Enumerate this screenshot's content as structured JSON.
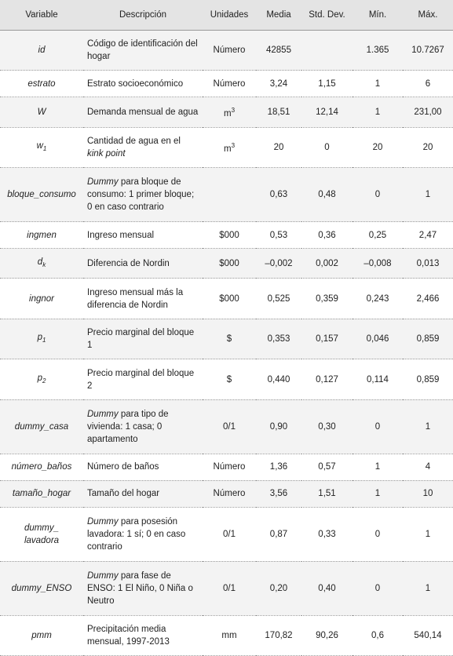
{
  "table": {
    "header": [
      "Variable",
      "Descripción",
      "Unidades",
      "Media",
      "Std. Dev.",
      "Mín.",
      "Máx."
    ],
    "rows": [
      {
        "variable": {
          "text": "id"
        },
        "description": [
          {
            "text": "Código de identificación del hogar"
          }
        ],
        "units": {
          "text": "Número"
        },
        "mean": "42855",
        "min": "1.365",
        "max": "10.7267"
      },
      {
        "variable": {
          "text": "estrato"
        },
        "description": [
          {
            "text": "Estrato socioeconómico"
          }
        ],
        "units": {
          "text": "Número"
        },
        "mean": "3,24",
        "std": "1,15",
        "min": "1",
        "max": "6"
      },
      {
        "variable": {
          "text": "W"
        },
        "description": [
          {
            "text": "Demanda mensual de agua"
          }
        ],
        "units": {
          "text": "m",
          "sup": "3"
        },
        "mean": "18,51",
        "std": "12,14",
        "min": "1",
        "max": "231,00"
      },
      {
        "variable": {
          "text": "w",
          "sub": "1"
        },
        "description": [
          {
            "text": "Cantidad de agua en el "
          },
          {
            "text": "kink point",
            "italic": true
          }
        ],
        "units": {
          "text": "m",
          "sup": "3"
        },
        "mean": "20",
        "std": "0",
        "min": "20",
        "max": "20"
      },
      {
        "variable": {
          "text": "bloque_consumo"
        },
        "description": [
          {
            "text": "Dummy",
            "italic": true
          },
          {
            "text": " para bloque de consumo: 1 primer bloque; 0 en caso contrario"
          }
        ],
        "mean": "0,63",
        "std": "0,48",
        "min": "0",
        "max": "1"
      },
      {
        "variable": {
          "text": "ingmen"
        },
        "description": [
          {
            "text": "Ingreso mensual"
          }
        ],
        "units": {
          "text": "$000"
        },
        "mean": "0,53",
        "std": "0,36",
        "min": "0,25",
        "max": "2,47"
      },
      {
        "variable": {
          "text": "d",
          "sub": "k"
        },
        "description": [
          {
            "text": "Diferencia de Nordin"
          }
        ],
        "units": {
          "text": "$000"
        },
        "mean": "–0,002",
        "std": "0,002",
        "min": "–0,008",
        "max": "0,013"
      },
      {
        "variable": {
          "text": "ingnor"
        },
        "description": [
          {
            "text": "Ingreso mensual más la diferencia de Nordin"
          }
        ],
        "units": {
          "text": "$000"
        },
        "mean": "0,525",
        "std": "0,359",
        "min": "0,243",
        "max": "2,466"
      },
      {
        "variable": {
          "text": "p",
          "sub": "1"
        },
        "description": [
          {
            "text": "Precio marginal del bloque 1"
          }
        ],
        "units": {
          "text": "$"
        },
        "mean": "0,353",
        "std": "0,157",
        "min": "0,046",
        "max": "0,859"
      },
      {
        "variable": {
          "text": "p",
          "sub": "2"
        },
        "description": [
          {
            "text": "Precio marginal del bloque 2"
          }
        ],
        "units": {
          "text": "$"
        },
        "mean": "0,440",
        "std": "0,127",
        "min": "0,114",
        "max": "0,859"
      },
      {
        "variable": {
          "text": "dummy_casa"
        },
        "description": [
          {
            "text": "Dummy",
            "italic": true
          },
          {
            "text": " para tipo de vivienda: 1 casa; 0 apartamento"
          }
        ],
        "units": {
          "text": "0/1"
        },
        "mean": "0,90",
        "std": "0,30",
        "min": "0",
        "max": "1"
      },
      {
        "variable": {
          "text": "número_baños"
        },
        "description": [
          {
            "text": "Número de baños"
          }
        ],
        "units": {
          "text": "Número"
        },
        "mean": "1,36",
        "std": "0,57",
        "min": "1",
        "max": "4"
      },
      {
        "variable": {
          "text": "tamaño_hogar"
        },
        "description": [
          {
            "text": "Tamaño del hogar"
          }
        ],
        "units": {
          "text": "Número"
        },
        "mean": "3,56",
        "std": "1,51",
        "min": "1",
        "max": "10"
      },
      {
        "variable": {
          "text": "dummy_\nlavadora"
        },
        "description": [
          {
            "text": "Dummy",
            "italic": true
          },
          {
            "text": " para posesión lavadora: 1 sí; 0 en caso contrario"
          }
        ],
        "units": {
          "text": "0/1"
        },
        "mean": "0,87",
        "std": "0,33",
        "min": "0",
        "max": "1"
      },
      {
        "variable": {
          "text": "dummy_ENSO"
        },
        "description": [
          {
            "text": "Dummy",
            "italic": true
          },
          {
            "text": " para fase de ENSO: 1 El Niño, 0 Niña o Neutro"
          }
        ],
        "units": {
          "text": "0/1"
        },
        "mean": "0,20",
        "std": "0,40",
        "min": "0",
        "max": "1"
      },
      {
        "variable": {
          "text": "pmm"
        },
        "description": [
          {
            "text": "Precipitación media mensual, 1997-2013"
          }
        ],
        "units": {
          "text": "mm"
        },
        "mean": "170,82",
        "std": "90,26",
        "min": "0,6",
        "max": "540,14"
      }
    ]
  }
}
